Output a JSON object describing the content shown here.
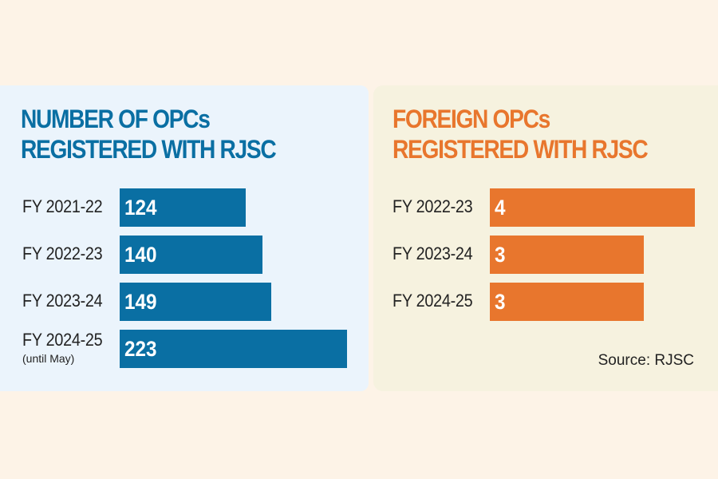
{
  "chart_data": [
    {
      "type": "bar",
      "orientation": "horizontal",
      "title": "NUMBER OF OPCs REGISTERED WITH RJSC",
      "categories": [
        "FY 2021-22",
        "FY 2022-23",
        "FY 2023-24",
        "FY 2024-25"
      ],
      "category_notes": [
        null,
        null,
        null,
        "(until May)"
      ],
      "values": [
        124,
        140,
        149,
        223
      ],
      "color": "#0a6fa3"
    },
    {
      "type": "bar",
      "orientation": "horizontal",
      "title": "FOREIGN OPCs REGISTERED WITH RJSC",
      "categories": [
        "FY 2022-23",
        "FY 2023-24",
        "FY 2024-25"
      ],
      "values": [
        4,
        3,
        3
      ],
      "color": "#e8762d",
      "source": "Source: RJSC"
    }
  ]
}
